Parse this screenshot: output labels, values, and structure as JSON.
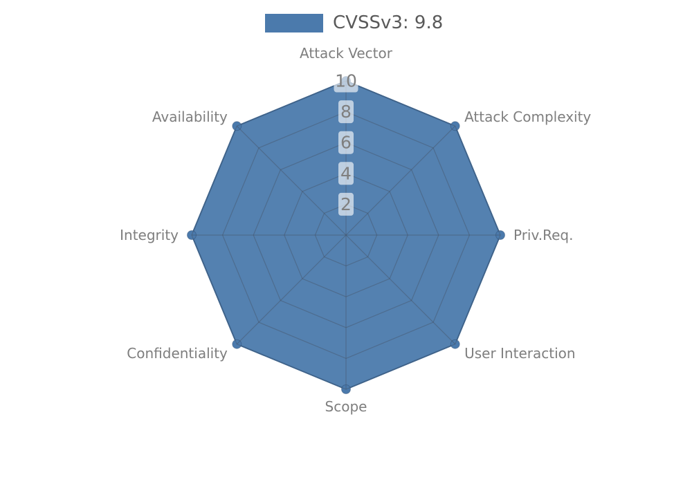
{
  "legend": {
    "label": "CVSSv3: 9.8",
    "swatch_color": "#4b7aac",
    "text_color": "#595959"
  },
  "chart_data": {
    "type": "radar",
    "title": "CVSSv3: 9.8",
    "categories": [
      "Attack Vector",
      "Attack Complexity",
      "Priv.Req.",
      "User Interaction",
      "Scope",
      "Confidentiality",
      "Integrity",
      "Availability"
    ],
    "series": [
      {
        "name": "CVSSv3: 9.8",
        "values": [
          10,
          10,
          10,
          10,
          10,
          10,
          10,
          10
        ],
        "color": "#4b7aac",
        "edge_color": "#3f6c9b"
      }
    ],
    "ticks": [
      2,
      4,
      6,
      8,
      10
    ],
    "rlim": [
      0,
      10
    ],
    "grid": true,
    "grid_color": "rgba(68,82,102,0.45)",
    "axis_label_color": "#7e7e7e",
    "tick_label_color": "#7f7f7f",
    "tick_box_color": "rgba(255,255,255,0.62)",
    "legend_position": "top-center",
    "marker": "circle"
  }
}
